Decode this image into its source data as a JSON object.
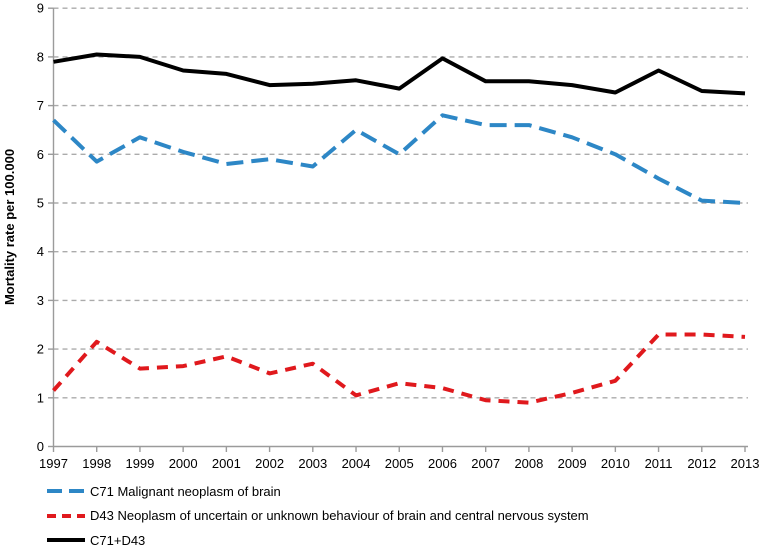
{
  "chart_data": {
    "type": "line",
    "title": "",
    "xlabel": "",
    "ylabel": "Mortality rate per 100.000",
    "ylim": [
      0,
      9
    ],
    "grid": "horizontal-dashed-gray",
    "legend_position": "below-left",
    "x": [
      1997,
      1998,
      1999,
      2000,
      2001,
      2002,
      2003,
      2004,
      2005,
      2006,
      2007,
      2008,
      2009,
      2010,
      2011,
      2012,
      2013
    ],
    "y_ticks": [
      0,
      1,
      2,
      3,
      4,
      5,
      6,
      7,
      8,
      9
    ],
    "series": [
      {
        "name": "C71 Malignant neoplasm of brain",
        "color": "#2D87C6",
        "style": "dashed-long",
        "values": [
          6.7,
          5.85,
          6.35,
          6.05,
          5.8,
          5.9,
          5.75,
          6.5,
          6.0,
          6.8,
          6.6,
          6.6,
          6.35,
          6.0,
          5.5,
          5.05,
          5.0
        ]
      },
      {
        "name": "D43 Neoplasm of uncertain or unknown behaviour of brain and central nervous system",
        "color": "#E0191D",
        "style": "dashed",
        "values": [
          1.15,
          2.15,
          1.6,
          1.65,
          1.85,
          1.5,
          1.7,
          1.05,
          1.3,
          1.2,
          0.95,
          0.9,
          1.1,
          1.35,
          2.3,
          2.3,
          2.25
        ]
      },
      {
        "name": "C71+D43",
        "color": "#000000",
        "style": "solid",
        "values": [
          7.9,
          8.05,
          8.0,
          7.72,
          7.65,
          7.42,
          7.45,
          7.52,
          7.35,
          7.97,
          7.5,
          7.5,
          7.42,
          7.27,
          7.72,
          7.3,
          7.25
        ]
      }
    ],
    "axis_color": "#9B9B9B",
    "gridline_color": "#ABABAB"
  }
}
